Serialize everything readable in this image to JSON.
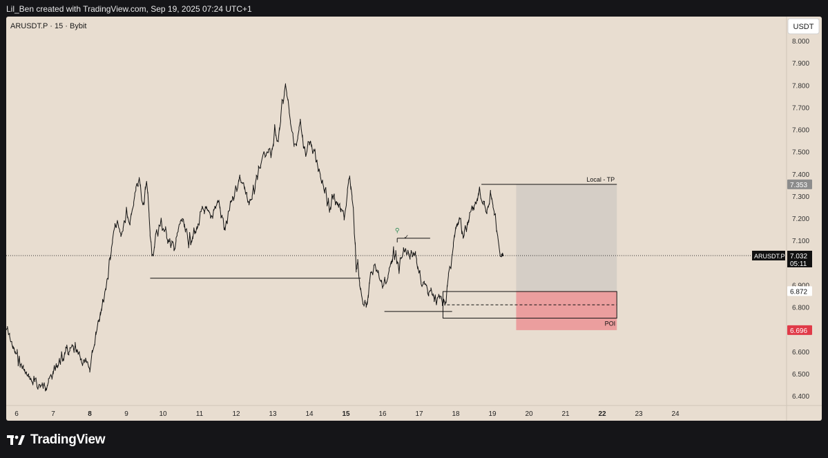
{
  "caption": "Lil_Ben created with TradingView.com, Sep 19, 2025 07:24 UTC+1",
  "footer_brand": "TradingView",
  "colors": {
    "background": "#151518",
    "chart_bg": "#e8ddd0",
    "candles": "#111111",
    "tp_zone": "#d5cec6",
    "sl_zone": "#eb9e9e",
    "sl_label": "#e03a48",
    "tp_label": "#8c8c8c"
  },
  "chart_data": {
    "type": "line",
    "symbol_line": "ARUSDT.P · 15 · Bybit",
    "currency_badge": "USDT",
    "y_ticks": [
      "8.000",
      "7.900",
      "7.800",
      "7.700",
      "7.600",
      "7.500",
      "7.400",
      "7.300",
      "7.200",
      "7.100",
      "6.900",
      "6.800",
      "6.600",
      "6.500",
      "6.400"
    ],
    "ylim": [
      6.36,
      8.06
    ],
    "x_ticks": [
      {
        "label": "6",
        "day": 6,
        "bold": false
      },
      {
        "label": "7",
        "day": 7,
        "bold": false
      },
      {
        "label": "8",
        "day": 8,
        "bold": true
      },
      {
        "label": "9",
        "day": 9,
        "bold": false
      },
      {
        "label": "10",
        "day": 10,
        "bold": false
      },
      {
        "label": "11",
        "day": 11,
        "bold": false
      },
      {
        "label": "12",
        "day": 12,
        "bold": false
      },
      {
        "label": "13",
        "day": 13,
        "bold": false
      },
      {
        "label": "14",
        "day": 14,
        "bold": false
      },
      {
        "label": "15",
        "day": 15,
        "bold": true
      },
      {
        "label": "16",
        "day": 16,
        "bold": false
      },
      {
        "label": "17",
        "day": 17,
        "bold": false
      },
      {
        "label": "18",
        "day": 18,
        "bold": false
      },
      {
        "label": "19",
        "day": 19,
        "bold": false
      },
      {
        "label": "20",
        "day": 20,
        "bold": false
      },
      {
        "label": "21",
        "day": 21,
        "bold": false
      },
      {
        "label": "22",
        "day": 22,
        "bold": true
      },
      {
        "label": "23",
        "day": 23,
        "bold": false
      },
      {
        "label": "24",
        "day": 24,
        "bold": false
      }
    ],
    "xlim": [
      5.72,
      27.0
    ],
    "series": [
      {
        "x": [
          5.72,
          5.9,
          6.1,
          6.3,
          6.5,
          6.7,
          6.9,
          7.0,
          7.2,
          7.4,
          7.6,
          7.8,
          8.0,
          8.1,
          8.2,
          8.35,
          8.5,
          8.62,
          8.72,
          8.85,
          9.0,
          9.1,
          9.2,
          9.35,
          9.45,
          9.55,
          9.62,
          9.7,
          9.8,
          9.95,
          10.1,
          10.3,
          10.5,
          10.7,
          10.9,
          11.1,
          11.3,
          11.5,
          11.7,
          11.9,
          12.1,
          12.2,
          12.35,
          12.55,
          12.7,
          12.85,
          12.95,
          13.05,
          13.15,
          13.25,
          13.35,
          13.45,
          13.55,
          13.65,
          13.75,
          13.9,
          14.0,
          14.15,
          14.3,
          14.45,
          14.55,
          14.65,
          14.8,
          14.95,
          15.1,
          15.2,
          15.28,
          15.32,
          15.4,
          15.55,
          15.7,
          15.85,
          16.0,
          16.15,
          16.3,
          16.45,
          16.6,
          16.75,
          16.9,
          17.05,
          17.2,
          17.35,
          17.5,
          17.6,
          17.7,
          17.8,
          17.9,
          18.0,
          18.1,
          18.2,
          18.35,
          18.5,
          18.65,
          18.75,
          18.85,
          18.95,
          19.05,
          19.15,
          19.25,
          19.3
        ],
        "y": [
          6.7,
          6.62,
          6.55,
          6.48,
          6.46,
          6.44,
          6.47,
          6.5,
          6.56,
          6.6,
          6.61,
          6.55,
          6.52,
          6.62,
          6.72,
          6.82,
          6.95,
          7.1,
          7.18,
          7.12,
          7.22,
          7.16,
          7.28,
          7.38,
          7.25,
          7.38,
          7.2,
          7.02,
          7.12,
          7.18,
          7.12,
          7.06,
          7.2,
          7.1,
          7.14,
          7.24,
          7.2,
          7.28,
          7.14,
          7.3,
          7.38,
          7.34,
          7.26,
          7.36,
          7.45,
          7.52,
          7.48,
          7.6,
          7.54,
          7.72,
          7.8,
          7.7,
          7.56,
          7.52,
          7.62,
          7.46,
          7.56,
          7.48,
          7.4,
          7.32,
          7.24,
          7.3,
          7.26,
          7.2,
          7.38,
          7.24,
          6.98,
          7.0,
          6.86,
          6.8,
          6.96,
          6.98,
          6.9,
          6.94,
          7.05,
          6.98,
          7.06,
          7.02,
          7.04,
          6.92,
          6.88,
          6.86,
          6.82,
          6.86,
          6.8,
          6.94,
          7.02,
          7.16,
          7.22,
          7.12,
          7.18,
          7.26,
          7.33,
          7.28,
          7.2,
          7.32,
          7.25,
          7.1,
          7.02,
          7.03
        ]
      }
    ],
    "horizontal_levels": [
      {
        "price": 6.93,
        "x_start": 9.65,
        "x_end": 15.4
      },
      {
        "price": 6.78,
        "x_start": 16.05,
        "x_end": 17.9
      },
      {
        "price": 7.11,
        "x_start": 16.4,
        "x_end": 17.3
      }
    ],
    "current_price_line": {
      "price": 7.032
    },
    "trade_box": {
      "x_start": 19.65,
      "x_end": 22.4,
      "take_profit": 7.353,
      "entry": 6.872,
      "stop_loss": 6.696,
      "tp_label": "Local - TP"
    },
    "poi_box": {
      "x_start": 17.65,
      "x_end": 22.4,
      "top": 6.87,
      "bottom": 6.75,
      "mid": 6.81,
      "label": "POI"
    },
    "poi_extension": {
      "x_start": 17.65,
      "x_end": 18.0,
      "top": 6.75,
      "bottom": 6.745
    },
    "tp_line": {
      "x_start": 18.7,
      "x_end": 22.4,
      "price": 7.353
    },
    "markers": [
      {
        "type": "marker",
        "symbol": "⚲",
        "x": 16.4,
        "price": 7.145
      },
      {
        "type": "check",
        "symbol": "✓",
        "x": 16.65,
        "price": 7.116
      }
    ],
    "price_labels": {
      "tp": "7.353",
      "entry": "6.872",
      "sl": "6.696",
      "current_symbol": "ARUSDT.P",
      "current_price": "7.032",
      "countdown": "05:11"
    }
  }
}
